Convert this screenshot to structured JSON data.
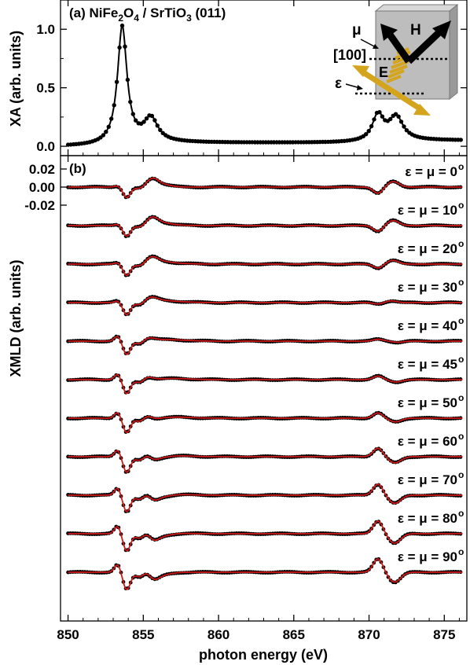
{
  "figure": {
    "panel_a_label_prefix": "(a) NiFe",
    "panel_a_sub1": "2",
    "panel_a_mid": "O",
    "panel_a_sub2": "4",
    "panel_a_mid2": " / SrTiO",
    "panel_a_sub3": "3",
    "panel_a_suffix": " (011)",
    "panel_b_label": "(b)",
    "inset": {
      "mu_label": "μ",
      "h_label": "H",
      "dir_label": "[100]",
      "e_label": "E",
      "eps_label": "ε",
      "box_color": "#bdbdbd",
      "arrow_color": "#000000",
      "e_color": "#d4a51c"
    }
  },
  "chart_data": [
    {
      "type": "scatter",
      "panel": "a",
      "title": "",
      "xlabel": "photon energy (eV)",
      "ylabel": "XA (arb. units)",
      "xlim": [
        849.5,
        876.5
      ],
      "ylim": [
        -0.08,
        1.25
      ],
      "xticks": [
        "850",
        "855",
        "860",
        "865",
        "870",
        "875"
      ],
      "yticks": [
        "0.0",
        "0.5",
        "1.0"
      ],
      "peaks": [
        {
          "x": 853.6,
          "y": 1.0
        },
        {
          "x": 855.5,
          "y": 0.2
        },
        {
          "x": 870.6,
          "y": 0.22
        },
        {
          "x": 871.8,
          "y": 0.2
        }
      ],
      "marker_color": "#000000"
    },
    {
      "type": "line",
      "panel": "b",
      "xlabel": "photon energy (eV)",
      "ylabel": "XMLD (arb. units)",
      "xlim": [
        849.5,
        876.5
      ],
      "yticks": [
        "0.02",
        "0.00",
        "-0.02"
      ],
      "xticks": [
        "850",
        "855",
        "860",
        "865",
        "870",
        "875"
      ],
      "series_style": {
        "data_color": "#000000",
        "fit_color": "#d01818"
      },
      "series": [
        {
          "label": "ε = μ = 0",
          "deg": "o",
          "angle": 0
        },
        {
          "label": "ε = μ = 10",
          "deg": "o",
          "angle": 10
        },
        {
          "label": "ε = μ = 20",
          "deg": "o",
          "angle": 20
        },
        {
          "label": "ε = μ = 30",
          "deg": "o",
          "angle": 30
        },
        {
          "label": "ε = μ = 40",
          "deg": "o",
          "angle": 40
        },
        {
          "label": "ε = μ = 45",
          "deg": "o",
          "angle": 45
        },
        {
          "label": "ε = μ = 50",
          "deg": "o",
          "angle": 50
        },
        {
          "label": "ε = μ = 60",
          "deg": "o",
          "angle": 60
        },
        {
          "label": "ε = μ = 70",
          "deg": "o",
          "angle": 70
        },
        {
          "label": "ε = μ = 80",
          "deg": "o",
          "angle": 80
        },
        {
          "label": "ε = μ = 90",
          "deg": "o",
          "angle": 90
        }
      ]
    }
  ]
}
